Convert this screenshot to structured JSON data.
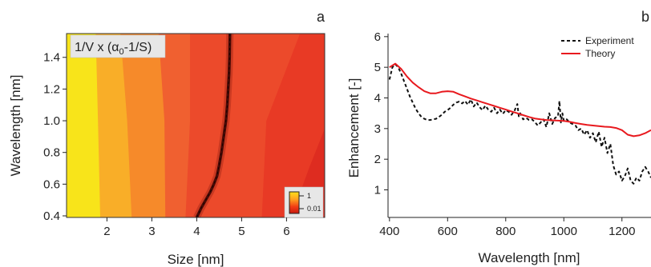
{
  "chart_data": [
    {
      "panel_label": "a",
      "type": "heatmap",
      "annotation_text": "1/V x (α",
      "annotation_sub": "0",
      "annotation_tail": "-1/S)",
      "xlabel": "Size [nm]",
      "ylabel": "Wavelength [nm]",
      "xlim": [
        1.1,
        6.85
      ],
      "ylim": [
        0.39,
        1.55
      ],
      "xticks": [
        2,
        3,
        4,
        5,
        6
      ],
      "yticks": [
        0.4,
        0.6,
        0.8,
        1.0,
        1.2,
        1.4
      ],
      "ytick_labels": [
        "0.4",
        "0.6",
        "0.8",
        "1.0",
        "1.2",
        "1.4"
      ],
      "colorbar": {
        "ticks": [
          "1",
          "0.01"
        ],
        "scale": "log",
        "colors": [
          "#ffe01a",
          "#ffa020",
          "#f23a14",
          "#c81a10"
        ]
      },
      "contour_levels": [
        {
          "level": 1,
          "color": "#f8e41a"
        },
        {
          "level": 2,
          "color": "#f9ae28"
        },
        {
          "level": 3,
          "color": "#f68a2a"
        },
        {
          "level": 4,
          "color": "#f06030"
        },
        {
          "level": 5,
          "color": "#ec4a2b"
        },
        {
          "level": 6,
          "color": "#e83a25"
        },
        {
          "level": 7,
          "color": "#de2c20"
        }
      ],
      "contour_boundaries": [
        {
          "lower_level": 1,
          "points": [
            [
              1.85,
              0.39
            ],
            [
              1.8,
              1.0
            ],
            [
              1.75,
              1.55
            ]
          ]
        },
        {
          "lower_level": 2,
          "points": [
            [
              2.55,
              0.39
            ],
            [
              2.45,
              1.0
            ],
            [
              2.3,
              1.55
            ]
          ]
        },
        {
          "lower_level": 3,
          "points": [
            [
              3.3,
              0.39
            ],
            [
              3.28,
              1.0
            ],
            [
              3.15,
              1.55
            ]
          ]
        },
        {
          "lower_level": 4,
          "points": [
            [
              3.75,
              0.39
            ],
            [
              3.85,
              1.0
            ],
            [
              3.85,
              1.55
            ]
          ]
        },
        {
          "lower_level": 5,
          "points": [
            [
              5.45,
              0.39
            ],
            [
              5.55,
              1.0
            ],
            [
              6.3,
              1.55
            ]
          ]
        },
        {
          "lower_level": 6,
          "points": [
            [
              6.1,
              0.39
            ],
            [
              6.5,
              0.7
            ],
            [
              6.85,
              0.95
            ]
          ]
        }
      ],
      "series": [
        {
          "x": [
            4.0,
            4.1,
            4.2,
            4.3,
            4.38,
            4.45,
            4.5,
            4.55,
            4.6,
            4.65,
            4.68,
            4.7,
            4.72,
            4.73,
            4.74
          ],
          "y": [
            0.39,
            0.45,
            0.5,
            0.55,
            0.6,
            0.65,
            0.72,
            0.8,
            0.9,
            1.0,
            1.1,
            1.2,
            1.3,
            1.4,
            1.55
          ],
          "color": "#4a0a05"
        }
      ]
    },
    {
      "panel_label": "b",
      "type": "line",
      "xlabel": "Wavelength [nm]",
      "ylabel": "Enhancement [-]",
      "xlim": [
        395,
        1300
      ],
      "ylim": [
        0.1,
        6.1
      ],
      "xticks": [
        400,
        600,
        800,
        1000,
        1200
      ],
      "yticks": [
        1,
        2,
        3,
        4,
        5,
        6
      ],
      "legend_position": "top-right",
      "series": [
        {
          "name": "Experiment",
          "style": "dashed",
          "color": "#111111",
          "x": [
            400,
            410,
            420,
            430,
            440,
            450,
            460,
            470,
            480,
            490,
            500,
            510,
            520,
            530,
            540,
            550,
            560,
            570,
            580,
            590,
            600,
            610,
            620,
            630,
            640,
            650,
            660,
            670,
            680,
            690,
            700,
            710,
            720,
            730,
            740,
            750,
            760,
            770,
            780,
            790,
            800,
            810,
            820,
            830,
            840,
            845,
            850,
            860,
            870,
            880,
            890,
            900,
            910,
            920,
            930,
            940,
            950,
            960,
            970,
            980,
            985,
            990,
            995,
            1000,
            1010,
            1020,
            1030,
            1040,
            1050,
            1060,
            1070,
            1080,
            1090,
            1100,
            1110,
            1120,
            1130,
            1140,
            1150,
            1160,
            1170,
            1180,
            1190,
            1200,
            1210,
            1220,
            1230,
            1240,
            1250,
            1260,
            1270,
            1280,
            1290,
            1300
          ],
          "y": [
            4.6,
            5.0,
            5.1,
            5.0,
            4.8,
            4.55,
            4.3,
            4.05,
            3.85,
            3.65,
            3.5,
            3.38,
            3.32,
            3.28,
            3.28,
            3.3,
            3.32,
            3.38,
            3.45,
            3.55,
            3.6,
            3.68,
            3.78,
            3.85,
            3.88,
            3.82,
            3.9,
            3.78,
            3.95,
            3.72,
            3.85,
            3.7,
            3.6,
            3.75,
            3.62,
            3.55,
            3.68,
            3.5,
            3.62,
            3.48,
            3.6,
            3.55,
            3.45,
            3.58,
            3.8,
            3.4,
            3.5,
            3.3,
            3.35,
            3.28,
            3.3,
            3.22,
            3.1,
            3.2,
            3.3,
            3.05,
            3.5,
            3.15,
            3.35,
            3.4,
            3.9,
            3.2,
            3.5,
            3.25,
            3.3,
            3.2,
            3.15,
            3.1,
            2.95,
            3.0,
            2.8,
            2.95,
            2.7,
            2.85,
            2.55,
            2.9,
            2.4,
            2.7,
            2.2,
            2.5,
            1.8,
            1.5,
            1.6,
            1.3,
            1.45,
            1.7,
            1.3,
            1.2,
            1.4,
            1.3,
            1.6,
            1.75,
            1.6,
            1.4
          ]
        },
        {
          "name": "Theory",
          "style": "solid",
          "color": "#e8191e",
          "x": [
            400,
            420,
            440,
            460,
            480,
            500,
            520,
            540,
            560,
            580,
            600,
            620,
            640,
            660,
            680,
            700,
            720,
            740,
            760,
            780,
            800,
            820,
            840,
            860,
            880,
            900,
            920,
            940,
            960,
            980,
            1000,
            1020,
            1040,
            1060,
            1080,
            1100,
            1120,
            1140,
            1160,
            1180,
            1200,
            1220,
            1240,
            1260,
            1280,
            1300
          ],
          "y": [
            5.0,
            5.12,
            4.95,
            4.7,
            4.5,
            4.35,
            4.22,
            4.15,
            4.15,
            4.2,
            4.22,
            4.2,
            4.12,
            4.05,
            3.98,
            3.92,
            3.86,
            3.8,
            3.74,
            3.68,
            3.62,
            3.56,
            3.5,
            3.44,
            3.38,
            3.33,
            3.3,
            3.28,
            3.27,
            3.26,
            3.25,
            3.22,
            3.18,
            3.15,
            3.12,
            3.1,
            3.08,
            3.06,
            3.05,
            3.02,
            2.95,
            2.8,
            2.75,
            2.78,
            2.85,
            2.95
          ]
        }
      ]
    }
  ]
}
